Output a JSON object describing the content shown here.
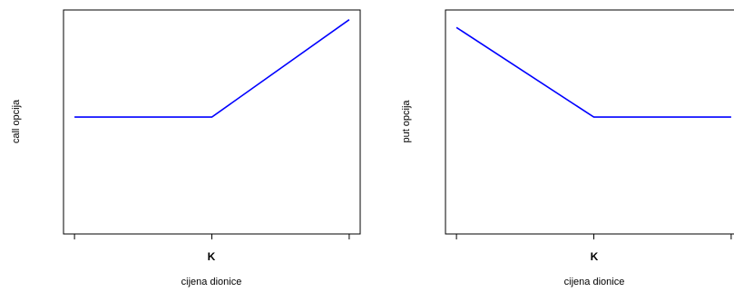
{
  "chart_data": [
    {
      "type": "line",
      "title": "",
      "xlabel": "cijena dionice",
      "ylabel": "call opcija",
      "xticks": [
        "",
        "K",
        ""
      ],
      "x": [
        0,
        1,
        2
      ],
      "series": [
        {
          "values": [
            0,
            0,
            1
          ]
        }
      ],
      "xlim": [
        -0.08,
        2.08
      ],
      "ylim": [
        -1.2,
        1.1
      ],
      "line_color": "#0000ff",
      "frame": "box",
      "grid": false
    },
    {
      "type": "line",
      "title": "",
      "xlabel": "cijena dionice",
      "ylabel": "put opcija",
      "xticks": [
        "",
        "K",
        ""
      ],
      "x": [
        0,
        1,
        2
      ],
      "series": [
        {
          "values": [
            0.92,
            0,
            0
          ]
        }
      ],
      "xlim": [
        -0.08,
        2.08
      ],
      "ylim": [
        -1.2,
        1.1
      ],
      "line_color": "#0000ff",
      "frame": "box",
      "grid": false
    }
  ]
}
